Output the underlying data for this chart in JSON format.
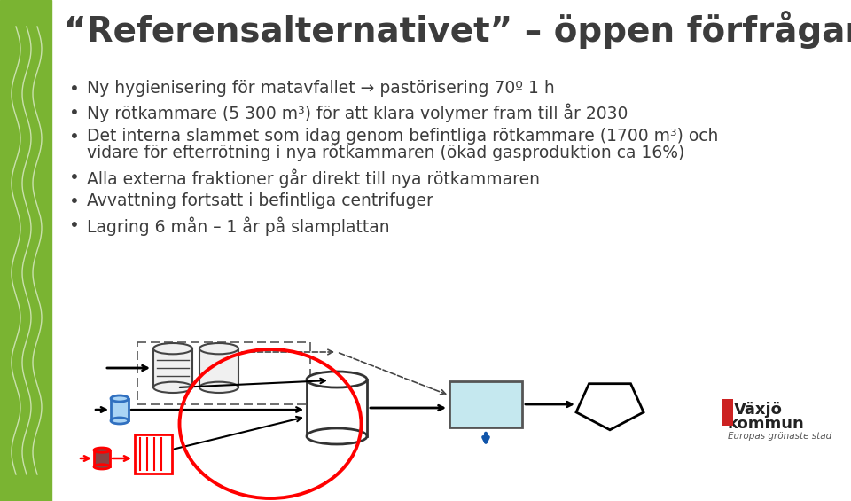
{
  "title": "“Referensalternativet” – öppen förfrågan",
  "bullet_lines": [
    [
      "Ny hygienisering för matavfallet → pastörisering 70º 1 h"
    ],
    [
      "Ny rötkammare (5 300 m³) för att klara volymer fram till år 2030"
    ],
    [
      "Det interna slammet som idag genom befintliga rötkammare (1700 m³) och",
      "vidare för efterrötning i nya rötkammaren (ökad gasproduktion ca 16%)"
    ],
    [
      "Alla externa fraktioner går direkt till nya rötkammaren"
    ],
    [
      "Avvattning fortsatt i befintliga centrifuger"
    ],
    [
      "Lagring 6 mån – 1 år på slamplattan"
    ]
  ],
  "background_color": "#ffffff",
  "left_bar_color": "#7ab432",
  "title_color": "#3c3c3c",
  "bullet_color": "#3c3c3c",
  "title_fontsize": 28,
  "bullet_fontsize": 13.5
}
